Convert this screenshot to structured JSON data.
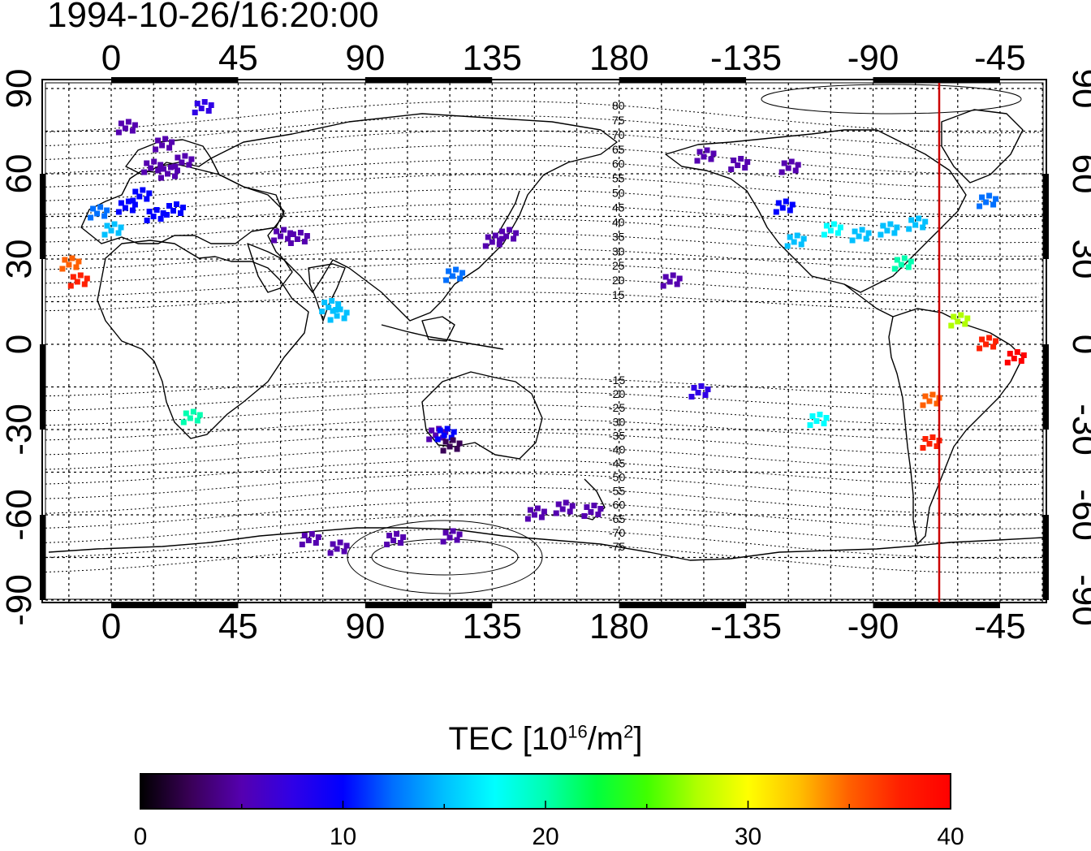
{
  "timestamp": "1994-10-26/16:20:00",
  "map": {
    "lon_labels": [
      "0",
      "45",
      "90",
      "135",
      "180",
      "-135",
      "-90",
      "-45"
    ],
    "lat_labels": [
      "90",
      "60",
      "30",
      "0",
      "-30",
      "-60",
      "-90"
    ],
    "contour_labels_north": [
      "80",
      "75",
      "70",
      "65",
      "60",
      "55",
      "50",
      "45",
      "40",
      "35",
      "30",
      "25",
      "20",
      "15"
    ],
    "contour_labels_south": [
      "-15",
      "-20",
      "-25",
      "-30",
      "-35",
      "-40",
      "-45",
      "-50",
      "-55",
      "-60",
      "-65",
      "-70",
      "-75"
    ],
    "marker_line_color": "#cc0000",
    "tec_stations": [
      {
        "lon": 5,
        "lat": 76,
        "tec": 5
      },
      {
        "lon": 32,
        "lat": 83,
        "tec": 7
      },
      {
        "lon": 18,
        "lat": 70,
        "tec": 6
      },
      {
        "lon": 14,
        "lat": 62,
        "tec": 6
      },
      {
        "lon": 20,
        "lat": 60,
        "tec": 5
      },
      {
        "lon": 25,
        "lat": 64,
        "tec": 4
      },
      {
        "lon": 10,
        "lat": 52,
        "tec": 10
      },
      {
        "lon": 5,
        "lat": 48,
        "tec": 11
      },
      {
        "lon": 15,
        "lat": 45,
        "tec": 10
      },
      {
        "lon": 22,
        "lat": 47,
        "tec": 9
      },
      {
        "lon": -5,
        "lat": 46,
        "tec": 12
      },
      {
        "lon": 0,
        "lat": 40,
        "tec": 14
      },
      {
        "lon": -15,
        "lat": 28,
        "tec": 34
      },
      {
        "lon": -12,
        "lat": 22,
        "tec": 38
      },
      {
        "lon": 60,
        "lat": 38,
        "tec": 5
      },
      {
        "lon": 66,
        "lat": 37,
        "tec": 5
      },
      {
        "lon": 77,
        "lat": 13,
        "tec": 16
      },
      {
        "lon": 80,
        "lat": 10,
        "tec": 15
      },
      {
        "lon": 121,
        "lat": 24,
        "tec": 12
      },
      {
        "lon": 135,
        "lat": 36,
        "tec": 5
      },
      {
        "lon": 140,
        "lat": 38,
        "tec": 6
      },
      {
        "lon": 28,
        "lat": -26,
        "tec": 19
      },
      {
        "lon": 115,
        "lat": -32,
        "tec": 5
      },
      {
        "lon": 118,
        "lat": -32,
        "tec": 9
      },
      {
        "lon": 120,
        "lat": -36,
        "tec": 2
      },
      {
        "lon": 150,
        "lat": -60,
        "tec": 5
      },
      {
        "lon": 160,
        "lat": -58,
        "tec": 4
      },
      {
        "lon": 170,
        "lat": -59,
        "tec": 5
      },
      {
        "lon": 70,
        "lat": -69,
        "tec": 6
      },
      {
        "lon": 80,
        "lat": -72,
        "tec": 5
      },
      {
        "lon": 100,
        "lat": -69,
        "tec": 6
      },
      {
        "lon": 120,
        "lat": -68,
        "tec": 5
      },
      {
        "lon": -162,
        "lat": 22,
        "tec": 6
      },
      {
        "lon": -152,
        "lat": -17,
        "tec": 8
      },
      {
        "lon": -150,
        "lat": 66,
        "tec": 4
      },
      {
        "lon": -138,
        "lat": 63,
        "tec": 4
      },
      {
        "lon": -120,
        "lat": 62,
        "tec": 5
      },
      {
        "lon": -122,
        "lat": 48,
        "tec": 10
      },
      {
        "lon": -118,
        "lat": 36,
        "tec": 16
      },
      {
        "lon": -105,
        "lat": 40,
        "tec": 17
      },
      {
        "lon": -95,
        "lat": 38,
        "tec": 16
      },
      {
        "lon": -85,
        "lat": 40,
        "tec": 14
      },
      {
        "lon": -75,
        "lat": 42,
        "tec": 15
      },
      {
        "lon": -80,
        "lat": 28,
        "tec": 21
      },
      {
        "lon": -110,
        "lat": -27,
        "tec": 18
      },
      {
        "lon": -70,
        "lat": -20,
        "tec": 36
      },
      {
        "lon": -70,
        "lat": -35,
        "tec": 38
      },
      {
        "lon": -60,
        "lat": 8,
        "tec": 28
      },
      {
        "lon": -50,
        "lat": 0,
        "tec": 38
      },
      {
        "lon": -40,
        "lat": -5,
        "tec": 39
      },
      {
        "lon": -50,
        "lat": 50,
        "tec": 12
      }
    ]
  },
  "colorbar": {
    "title": "TEC  [10",
    "title_exp": "16",
    "title_unit": "/m",
    "title_exp2": "2",
    "title_close": "]",
    "tick_labels": [
      "0",
      "10",
      "20",
      "30",
      "40"
    ],
    "min": 0,
    "max": 40,
    "colors": [
      "#000000",
      "#3a0058",
      "#5500b0",
      "#3000e6",
      "#0000ff",
      "#0070ff",
      "#00c0ff",
      "#00ffff",
      "#00ffb0",
      "#00ff40",
      "#40ff00",
      "#b0ff00",
      "#ffff00",
      "#ffc000",
      "#ff6000",
      "#ff2000",
      "#ff0000"
    ]
  }
}
